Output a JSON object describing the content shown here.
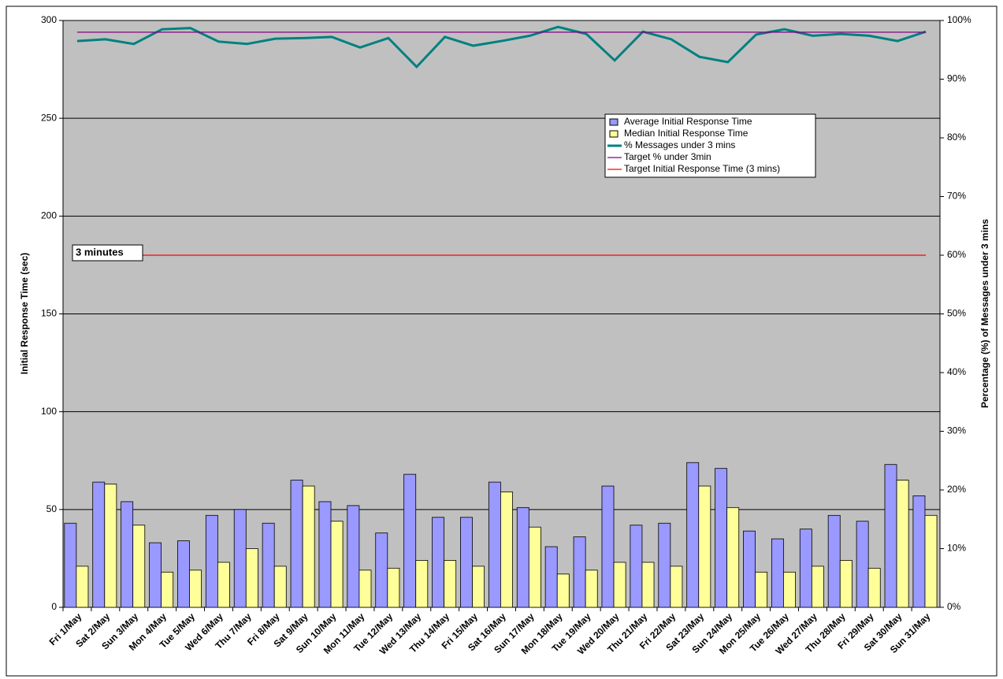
{
  "chart_data": {
    "type": "bar",
    "y_label": "Initial Response Time (sec)",
    "y2_label": "Percentage (%) of Messages under 3 mins",
    "annotation": "3 minutes",
    "categories": [
      "Fri 1/May",
      "Sat 2/May",
      "Sun 3/May",
      "Mon 4/May",
      "Tue 5/May",
      "Wed 6/May",
      "Thu 7/May",
      "Fri 8/May",
      "Sat 9/May",
      "Sun 10/May",
      "Mon 11/May",
      "Tue 12/May",
      "Wed 13/May",
      "Thu 14/May",
      "Fri 15/May",
      "Sat 16/May",
      "Sun 17/May",
      "Mon 18/May",
      "Tue 19/May",
      "Wed 20/May",
      "Thu 21/May",
      "Fri 22/May",
      "Sat 23/May",
      "Sun 24/May",
      "Mon 25/May",
      "Tue 26/May",
      "Wed 27/May",
      "Thu 28/May",
      "Fri 29/May",
      "Sat 30/May",
      "Sun 31/May"
    ],
    "series": [
      {
        "name": "Average Initial Response Time",
        "type": "bar",
        "color": "#9999ff",
        "values": [
          43,
          64,
          54,
          33,
          34,
          47,
          50,
          43,
          65,
          54,
          52,
          38,
          68,
          46,
          46,
          64,
          51,
          31,
          36,
          62,
          42,
          43,
          74,
          71,
          39,
          35,
          40,
          47,
          44,
          73,
          57
        ]
      },
      {
        "name": "Median Initial Response Time",
        "type": "bar",
        "color": "#ffff99",
        "values": [
          21,
          63,
          42,
          18,
          19,
          23,
          30,
          21,
          62,
          44,
          19,
          20,
          24,
          24,
          21,
          59,
          41,
          17,
          19,
          23,
          23,
          21,
          62,
          51,
          18,
          18,
          21,
          24,
          20,
          65,
          47
        ]
      },
      {
        "name": "% Messages under 3 mins",
        "type": "line",
        "axis": "y2",
        "color": "#008080",
        "values": [
          96.5,
          96.8,
          96.0,
          98.5,
          98.7,
          96.4,
          96.0,
          96.9,
          97.0,
          97.2,
          95.4,
          97.0,
          92.1,
          97.2,
          95.7,
          96.5,
          97.4,
          98.9,
          97.7,
          93.2,
          98.1,
          96.8,
          93.8,
          92.9,
          97.6,
          98.5,
          97.4,
          97.7,
          97.4,
          96.5,
          98.1
        ]
      },
      {
        "name": "Target % under 3min",
        "type": "line",
        "axis": "y2",
        "color": "#800080",
        "values": [
          98,
          98,
          98,
          98,
          98,
          98,
          98,
          98,
          98,
          98,
          98,
          98,
          98,
          98,
          98,
          98,
          98,
          98,
          98,
          98,
          98,
          98,
          98,
          98,
          98,
          98,
          98,
          98,
          98,
          98,
          98
        ]
      },
      {
        "name": "Target Initial Response Time (3 mins)",
        "type": "line",
        "color": "#ff0000",
        "values": [
          180,
          180,
          180,
          180,
          180,
          180,
          180,
          180,
          180,
          180,
          180,
          180,
          180,
          180,
          180,
          180,
          180,
          180,
          180,
          180,
          180,
          180,
          180,
          180,
          180,
          180,
          180,
          180,
          180,
          180,
          180
        ]
      }
    ],
    "ylim": [
      0,
      300
    ],
    "yticks": [
      0,
      50,
      100,
      150,
      200,
      250,
      300
    ],
    "y2lim": [
      0,
      100
    ],
    "y2ticks": [
      {
        "value": 0,
        "label": "0%"
      },
      {
        "value": 10,
        "label": "10%"
      },
      {
        "value": 20,
        "label": "20%"
      },
      {
        "value": 30,
        "label": "30%"
      },
      {
        "value": 40,
        "label": "40%"
      },
      {
        "value": 50,
        "label": "50%"
      },
      {
        "value": 60,
        "label": "60%"
      },
      {
        "value": 70,
        "label": "70%"
      },
      {
        "value": 80,
        "label": "80%"
      },
      {
        "value": 90,
        "label": "90%"
      },
      {
        "value": 100,
        "label": "100%"
      }
    ],
    "grid": true,
    "legend": "upper-right"
  }
}
